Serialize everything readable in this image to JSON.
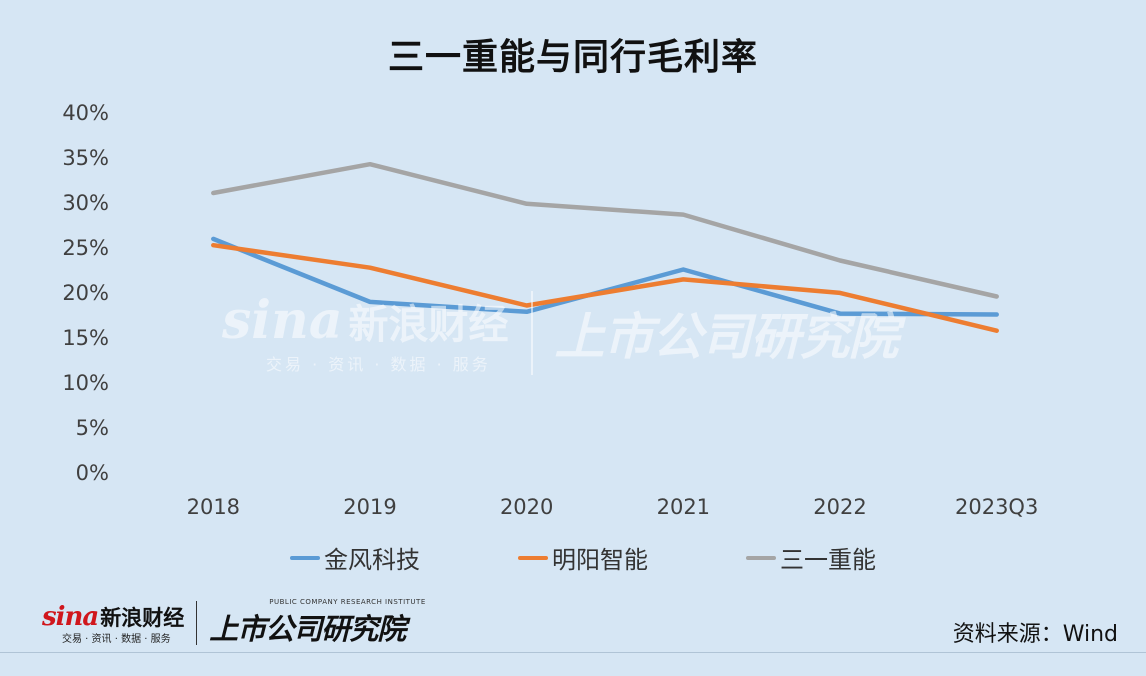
{
  "title": "三一重能与同行毛利率",
  "source": "资料来源：Wind",
  "brand": {
    "sina_word": "sina",
    "sina_name": "新浪财经",
    "sina_sub": "交易 · 资讯 · 数据 · 服务",
    "institute_sub": "PUBLIC COMPANY RESEARCH INSTITUTE",
    "institute_name": "上市公司研究院"
  },
  "watermark": {
    "sina_word": "sina",
    "sina_name": "新浪财经",
    "sina_sub": "交易 · 资讯 · 数据 · 服务",
    "institute_name": "上市公司研究院"
  },
  "chart_data": {
    "type": "line",
    "title": "三一重能与同行毛利率",
    "xlabel": "",
    "ylabel": "",
    "categories": [
      "2018",
      "2019",
      "2020",
      "2021",
      "2022",
      "2023Q3"
    ],
    "ylim": [
      0,
      40
    ],
    "yticks": [
      "0%",
      "5%",
      "10%",
      "15%",
      "20%",
      "25%",
      "30%",
      "35%",
      "40%"
    ],
    "grid": false,
    "legend_position": "bottom",
    "series": [
      {
        "name": "金风科技",
        "color": "#5b9bd5",
        "values": [
          25.9,
          18.9,
          17.8,
          22.5,
          17.6,
          17.5
        ]
      },
      {
        "name": "明阳智能",
        "color": "#ed7d31",
        "values": [
          25.2,
          22.7,
          18.5,
          21.4,
          19.9,
          15.7
        ]
      },
      {
        "name": "三一重能",
        "color": "#a5a5a5",
        "values": [
          31.0,
          34.2,
          29.8,
          28.6,
          23.5,
          19.5
        ]
      }
    ]
  }
}
